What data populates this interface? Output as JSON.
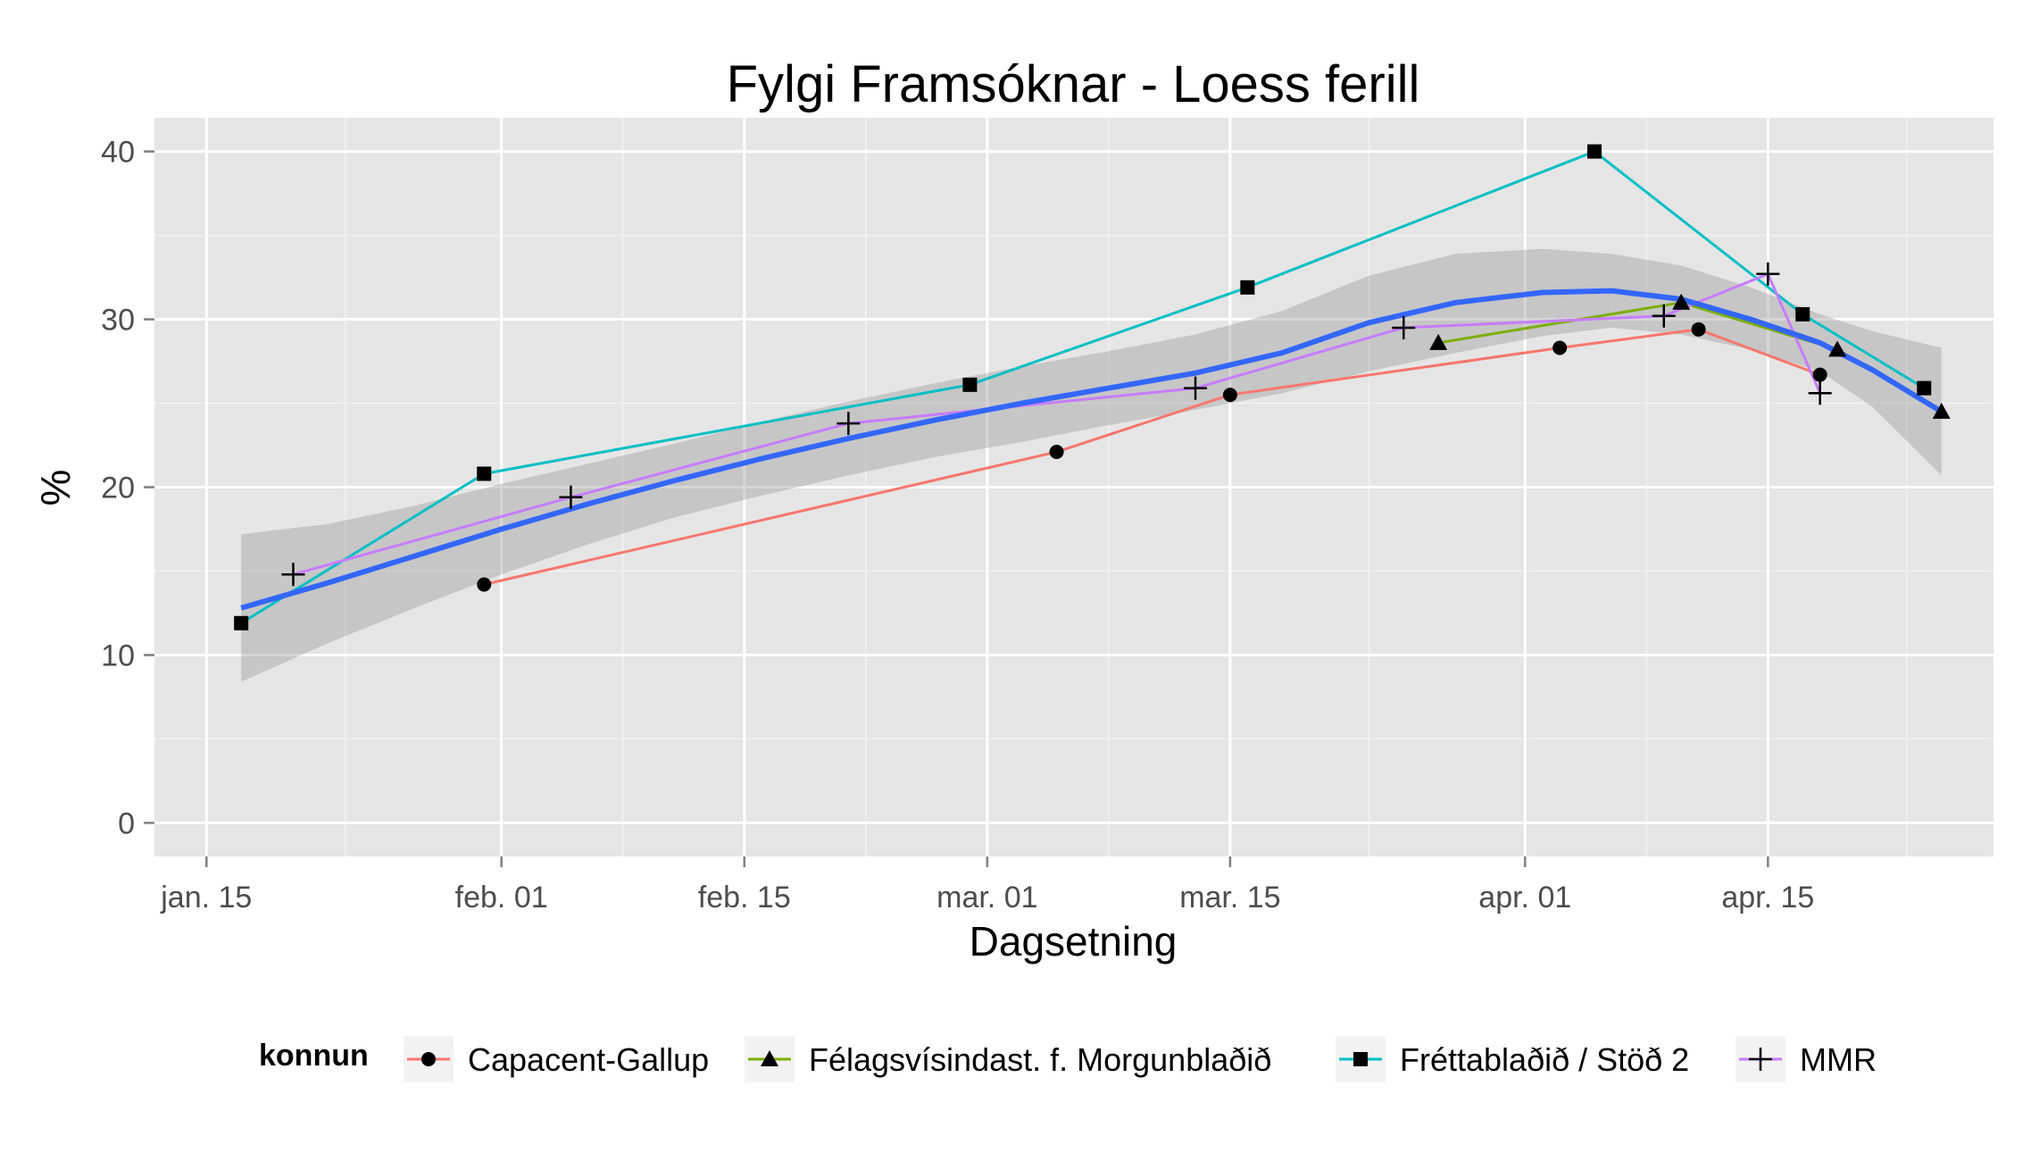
{
  "chart_data": {
    "type": "line",
    "title": "Fylgi Framsóknar - Loess ferill",
    "xlabel": "Dagsetning",
    "ylabel": "%",
    "x_axis": {
      "type": "date",
      "range": [
        "2013-01-12",
        "2013-04-28"
      ],
      "ticks": [
        {
          "date": "2013-01-15",
          "label": "jan. 15"
        },
        {
          "date": "2013-02-01",
          "label": "feb. 01"
        },
        {
          "date": "2013-02-15",
          "label": "feb. 15"
        },
        {
          "date": "2013-03-01",
          "label": "mar. 01"
        },
        {
          "date": "2013-03-15",
          "label": "mar. 15"
        },
        {
          "date": "2013-04-01",
          "label": "apr. 01"
        },
        {
          "date": "2013-04-15",
          "label": "apr. 15"
        }
      ],
      "minor_ticks": [
        "2013-01-23",
        "2013-02-08",
        "2013-02-22",
        "2013-03-08",
        "2013-03-23",
        "2013-04-08",
        "2013-04-23"
      ]
    },
    "y_axis": {
      "range": [
        -2,
        42
      ],
      "ticks": [
        0,
        10,
        20,
        30,
        40
      ],
      "minor_ticks": [
        5,
        15,
        25,
        35
      ]
    },
    "grid": true,
    "legend": {
      "title": "konnun",
      "placement": "bottom"
    },
    "series": [
      {
        "name": "Capacent-Gallup",
        "color": "#F8766D",
        "marker": "circle",
        "points": [
          {
            "x": "2013-01-31",
            "y": 14.2
          },
          {
            "x": "2013-03-05",
            "y": 22.1
          },
          {
            "x": "2013-03-15",
            "y": 25.5
          },
          {
            "x": "2013-04-03",
            "y": 28.3
          },
          {
            "x": "2013-04-11",
            "y": 29.4
          },
          {
            "x": "2013-04-18",
            "y": 26.7
          }
        ]
      },
      {
        "name": "Félagsvísindast. f. Morgunblaðið",
        "color": "#7CAE00",
        "marker": "triangle",
        "points": [
          {
            "x": "2013-03-27",
            "y": 28.6
          },
          {
            "x": "2013-04-10",
            "y": 31.0
          },
          {
            "x": "2013-04-19",
            "y": 28.2
          },
          {
            "x": "2013-04-25",
            "y": 24.5
          }
        ]
      },
      {
        "name": "Fréttablaðið / Stöð 2",
        "color": "#00BFC4",
        "marker": "square",
        "points": [
          {
            "x": "2013-01-17",
            "y": 11.9
          },
          {
            "x": "2013-01-31",
            "y": 20.8
          },
          {
            "x": "2013-02-28",
            "y": 26.1
          },
          {
            "x": "2013-03-16",
            "y": 31.9
          },
          {
            "x": "2013-04-05",
            "y": 40.0
          },
          {
            "x": "2013-04-17",
            "y": 30.3
          },
          {
            "x": "2013-04-24",
            "y": 25.9
          }
        ]
      },
      {
        "name": "MMR",
        "color": "#C77CFF",
        "marker": "plus",
        "points": [
          {
            "x": "2013-01-20",
            "y": 14.8
          },
          {
            "x": "2013-02-05",
            "y": 19.4
          },
          {
            "x": "2013-02-21",
            "y": 23.8
          },
          {
            "x": "2013-03-13",
            "y": 25.9
          },
          {
            "x": "2013-03-25",
            "y": 29.5
          },
          {
            "x": "2013-04-09",
            "y": 30.2
          },
          {
            "x": "2013-04-15",
            "y": 32.7
          },
          {
            "x": "2013-04-18",
            "y": 25.6
          }
        ]
      }
    ],
    "loess": {
      "color": "#3366FF",
      "band_color": "#999999",
      "points": [
        {
          "x": "2013-01-17",
          "y": 12.8,
          "lower": 8.4,
          "upper": 17.2
        },
        {
          "x": "2013-01-22",
          "y": 14.3,
          "lower": 10.7,
          "upper": 17.8
        },
        {
          "x": "2013-01-27",
          "y": 15.9,
          "lower": 12.8,
          "upper": 18.9
        },
        {
          "x": "2013-02-01",
          "y": 17.5,
          "lower": 14.8,
          "upper": 20.2
        },
        {
          "x": "2013-02-06",
          "y": 19.0,
          "lower": 16.6,
          "upper": 21.4
        },
        {
          "x": "2013-02-11",
          "y": 20.4,
          "lower": 18.2,
          "upper": 22.6
        },
        {
          "x": "2013-02-16",
          "y": 21.7,
          "lower": 19.5,
          "upper": 23.9
        },
        {
          "x": "2013-02-21",
          "y": 22.9,
          "lower": 20.7,
          "upper": 25.1
        },
        {
          "x": "2013-02-26",
          "y": 24.0,
          "lower": 21.8,
          "upper": 26.2
        },
        {
          "x": "2013-03-03",
          "y": 25.0,
          "lower": 22.7,
          "upper": 27.2
        },
        {
          "x": "2013-03-08",
          "y": 25.9,
          "lower": 23.7,
          "upper": 28.1
        },
        {
          "x": "2013-03-13",
          "y": 26.8,
          "lower": 24.6,
          "upper": 29.1
        },
        {
          "x": "2013-03-18",
          "y": 28.0,
          "lower": 25.6,
          "upper": 30.5
        },
        {
          "x": "2013-03-23",
          "y": 29.8,
          "lower": 26.9,
          "upper": 32.6
        },
        {
          "x": "2013-03-28",
          "y": 31.0,
          "lower": 28.0,
          "upper": 33.9
        },
        {
          "x": "2013-04-02",
          "y": 31.6,
          "lower": 29.0,
          "upper": 34.2
        },
        {
          "x": "2013-04-06",
          "y": 31.7,
          "lower": 29.5,
          "upper": 33.9
        },
        {
          "x": "2013-04-10",
          "y": 31.2,
          "lower": 29.1,
          "upper": 33.2
        },
        {
          "x": "2013-04-14",
          "y": 30.0,
          "lower": 28.2,
          "upper": 31.9
        },
        {
          "x": "2013-04-18",
          "y": 28.6,
          "lower": 26.9,
          "upper": 30.3
        },
        {
          "x": "2013-04-21",
          "y": 27.0,
          "lower": 24.8,
          "upper": 29.3
        },
        {
          "x": "2013-04-25",
          "y": 24.5,
          "lower": 20.7,
          "upper": 28.3
        }
      ]
    }
  }
}
